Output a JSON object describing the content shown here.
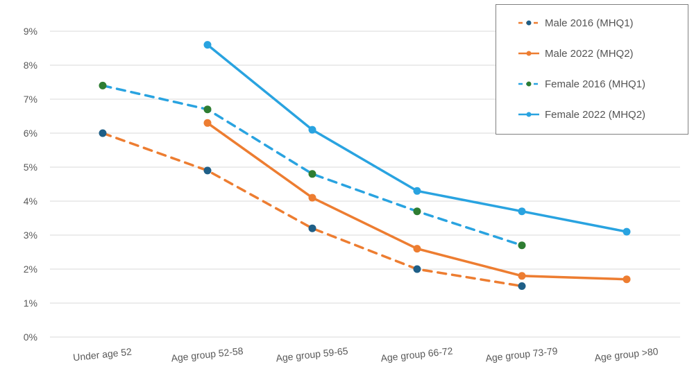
{
  "chart_data": {
    "type": "line",
    "title": "",
    "xlabel": "",
    "ylabel": "",
    "categories": [
      "Under age 52",
      "Age group 52-58",
      "Age group 59-65",
      "Age group 66-72",
      "Age group 73-79",
      "Age group >80"
    ],
    "y_ticks": [
      "0%",
      "1%",
      "2%",
      "3%",
      "4%",
      "5%",
      "6%",
      "7%",
      "8%",
      "9%"
    ],
    "ylim": [
      0,
      9
    ],
    "grid": true,
    "legend_position": "top-right",
    "series": [
      {
        "name": "Male 2016 (MHQ1)",
        "values": [
          6.0,
          4.9,
          3.2,
          2.0,
          1.5,
          null
        ],
        "color": "#ed7d31",
        "marker_color": "#1f5f87",
        "dashed": true
      },
      {
        "name": "Male 2022 (MHQ2)",
        "values": [
          null,
          6.3,
          4.1,
          2.6,
          1.8,
          1.7
        ],
        "color": "#ed7d31",
        "marker_color": "#ed7d31",
        "dashed": false
      },
      {
        "name": "Female 2016 (MHQ1)",
        "values": [
          7.4,
          6.7,
          4.8,
          3.7,
          2.7,
          null
        ],
        "color": "#29a3e0",
        "marker_color": "#2e7d32",
        "dashed": true
      },
      {
        "name": "Female 2022 (MHQ2)",
        "values": [
          null,
          8.6,
          6.1,
          4.3,
          3.7,
          3.1
        ],
        "color": "#29a3e0",
        "marker_color": "#29a3e0",
        "dashed": false
      }
    ]
  }
}
